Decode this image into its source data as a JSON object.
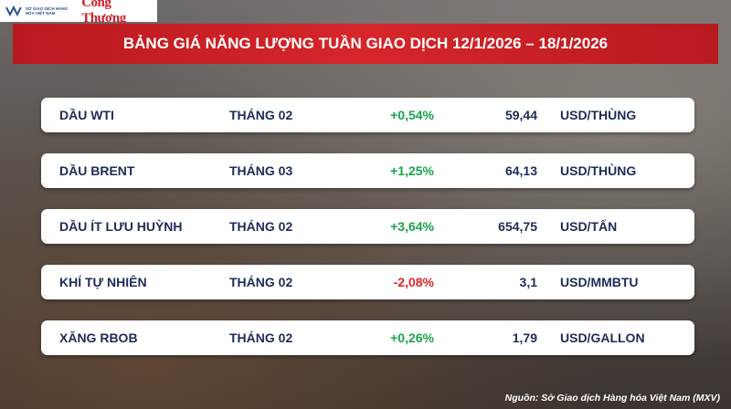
{
  "header": {
    "logo_text": "SỞ GIAO DỊCH HÀNG HÓA VIỆT NAM",
    "logo_brand": "Công Thương",
    "title": "BẢNG GIÁ NĂNG LƯỢNG TUẦN GIAO DỊCH 12/1/2026 – 18/1/2026"
  },
  "table": {
    "rows": [
      [
        "DẦU WTI",
        "THÁNG 02",
        "+0,54%",
        "59,44",
        "USD/THÙNG"
      ],
      [
        "DẦU BRENT",
        "THÁNG 03",
        "+1,25%",
        "64,13",
        "USD/THÙNG"
      ],
      [
        "DẦU ÍT LƯU HUỲNH",
        "THÁNG 02",
        "+3,64%",
        "654,75",
        "USD/TẤN"
      ],
      [
        "KHÍ TỰ NHIÊN",
        "THÁNG 02",
        "-2,08%",
        "3,1",
        "USD/MMBTU"
      ],
      [
        "XĂNG RBOB",
        "THÁNG 02",
        "+0,26%",
        "1,79",
        "USD/GALLON"
      ]
    ]
  },
  "footer": {
    "source": "Nguồn: Sở Giao dịch Hàng hóa Việt Nam (MXV)"
  }
}
